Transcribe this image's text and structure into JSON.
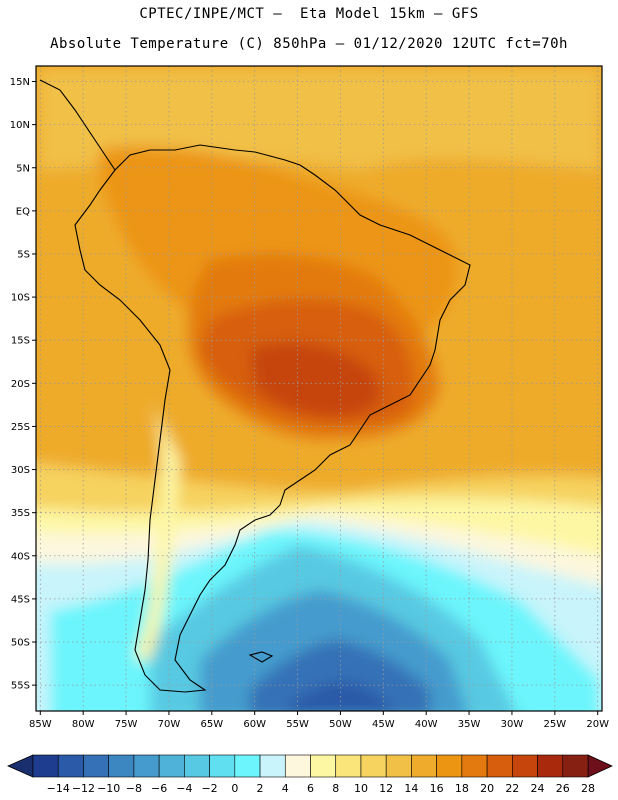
{
  "header": {
    "line1": "CPTEC/INPE/MCT –  Eta Model 15km – GFS",
    "line2": "Absolute Temperature (C) 850hPa – 01/12/2020 12UTC fct=70h"
  },
  "map": {
    "lat_labels": [
      "15N",
      "10N",
      "5N",
      "EQ",
      "5S",
      "10S",
      "15S",
      "20S",
      "25S",
      "30S",
      "35S",
      "40S",
      "45S",
      "50S",
      "55S"
    ],
    "lat_values": [
      15,
      10,
      5,
      0,
      -5,
      -10,
      -15,
      -20,
      -25,
      -30,
      -35,
      -40,
      -45,
      -50,
      -55
    ],
    "lon_labels": [
      "85W",
      "80W",
      "75W",
      "70W",
      "65W",
      "60W",
      "55W",
      "50W",
      "45W",
      "40W",
      "35W",
      "30W",
      "25W",
      "20W"
    ],
    "lon_values": [
      -85,
      -80,
      -75,
      -70,
      -65,
      -60,
      -55,
      -50,
      -45,
      -40,
      -35,
      -30,
      -25,
      -20
    ],
    "extent": {
      "lon_min": -85.5,
      "lon_max": -19.5,
      "lat_min": -58.0,
      "lat_max": 16.8
    }
  },
  "colorbar": {
    "labels": [
      "-14",
      "-12",
      "-10",
      "-8",
      "-6",
      "-4",
      "-2",
      "0",
      "2",
      "4",
      "6",
      "8",
      "10",
      "12",
      "14",
      "16",
      "18",
      "20",
      "22",
      "24",
      "26",
      "28"
    ],
    "colors": [
      "#1e3d8f",
      "#2a5aa8",
      "#3471b6",
      "#3c86c2",
      "#459bcd",
      "#4fb2d8",
      "#58c9e2",
      "#60dff0",
      "#6cf5fc",
      "#c9f4fb",
      "#fdf7dd",
      "#fdf7a4",
      "#fae57a",
      "#f6d25f",
      "#f1c047",
      "#eeab2c",
      "#ec9512",
      "#e37a0f",
      "#d75e0d",
      "#c6450d",
      "#a9290c",
      "#862012"
    ],
    "under_color": "#1a2f6e",
    "over_color": "#6e0f1c"
  }
}
